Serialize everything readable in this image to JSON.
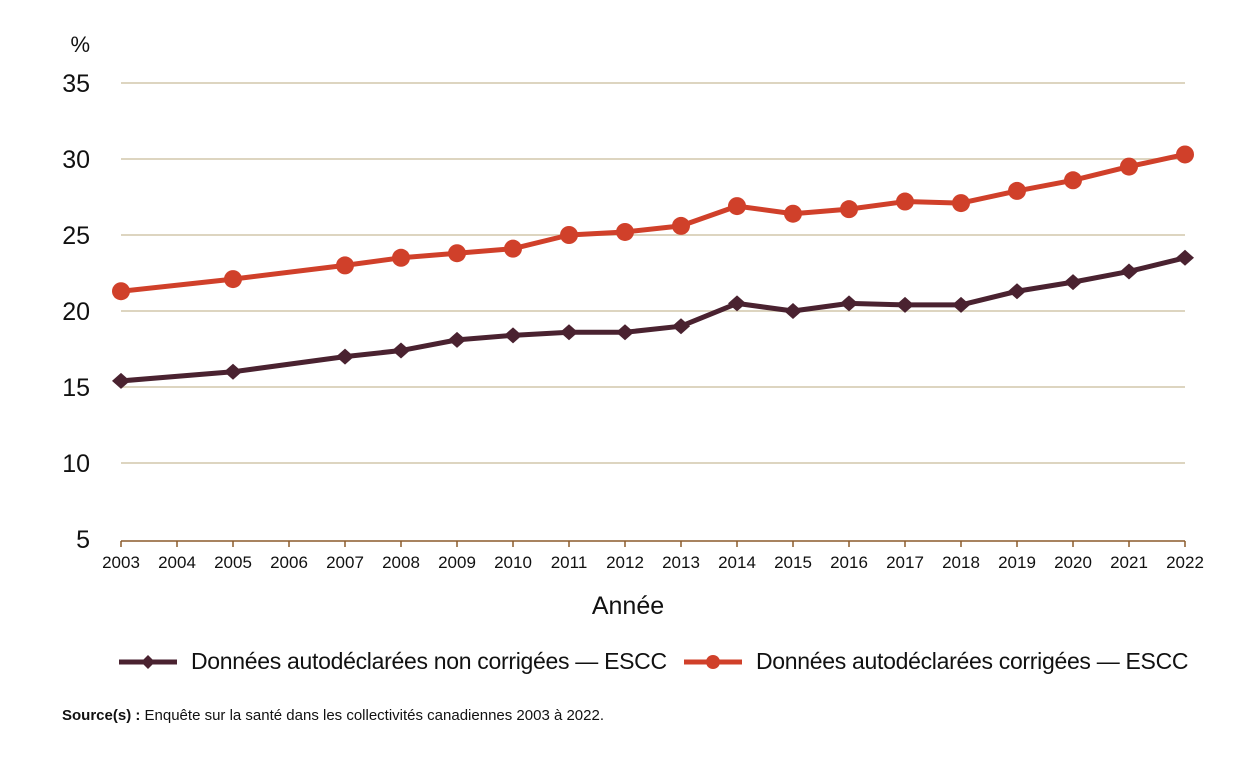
{
  "chart_data": {
    "type": "line",
    "title": "",
    "xlabel": "Année",
    "ylabel": "%",
    "ylim": [
      5,
      35
    ],
    "yticks": [
      5,
      10,
      15,
      20,
      25,
      30,
      35
    ],
    "x": [
      "2003",
      "2004",
      "2005",
      "2006",
      "2007",
      "2008",
      "2009",
      "2010",
      "2011",
      "2012",
      "2013",
      "2014",
      "2015",
      "2016",
      "2017",
      "2018",
      "2019",
      "2020",
      "2021",
      "2022"
    ],
    "grid": true,
    "legend_position": "bottom",
    "series": [
      {
        "name": "Données autodéclarées non corrigées — ESCC",
        "color": "#4A2230",
        "marker": "diamond",
        "points": [
          {
            "x": "2003",
            "y": 15.4
          },
          {
            "x": "2005",
            "y": 16.0
          },
          {
            "x": "2007",
            "y": 17.0
          },
          {
            "x": "2008",
            "y": 17.4
          },
          {
            "x": "2009",
            "y": 18.1
          },
          {
            "x": "2010",
            "y": 18.4
          },
          {
            "x": "2011",
            "y": 18.6
          },
          {
            "x": "2012",
            "y": 18.6
          },
          {
            "x": "2013",
            "y": 19.0
          },
          {
            "x": "2014",
            "y": 20.5
          },
          {
            "x": "2015",
            "y": 20.0
          },
          {
            "x": "2016",
            "y": 20.5
          },
          {
            "x": "2017",
            "y": 20.4
          },
          {
            "x": "2018",
            "y": 20.4
          },
          {
            "x": "2019",
            "y": 21.3
          },
          {
            "x": "2020",
            "y": 21.9
          },
          {
            "x": "2021",
            "y": 22.6
          },
          {
            "x": "2022",
            "y": 23.5
          }
        ]
      },
      {
        "name": "Données autodéclarées corrigées — ESCC",
        "color": "#D0402A",
        "marker": "circle",
        "points": [
          {
            "x": "2003",
            "y": 21.3
          },
          {
            "x": "2005",
            "y": 22.1
          },
          {
            "x": "2007",
            "y": 23.0
          },
          {
            "x": "2008",
            "y": 23.5
          },
          {
            "x": "2009",
            "y": 23.8
          },
          {
            "x": "2010",
            "y": 24.1
          },
          {
            "x": "2011",
            "y": 25.0
          },
          {
            "x": "2012",
            "y": 25.2
          },
          {
            "x": "2013",
            "y": 25.6
          },
          {
            "x": "2014",
            "y": 26.9
          },
          {
            "x": "2015",
            "y": 26.4
          },
          {
            "x": "2016",
            "y": 26.7
          },
          {
            "x": "2017",
            "y": 27.2
          },
          {
            "x": "2018",
            "y": 27.1
          },
          {
            "x": "2019",
            "y": 27.9
          },
          {
            "x": "2020",
            "y": 28.6
          },
          {
            "x": "2021",
            "y": 29.5
          },
          {
            "x": "2022",
            "y": 30.3
          }
        ]
      }
    ],
    "colors": {
      "grid": "#DDD5C0",
      "axis": "#8B5A2B"
    }
  },
  "legend": {
    "items": [
      {
        "label": "Données autodéclarées non corrigées — ESCC"
      },
      {
        "label": "Données autodéclarées corrigées — ESCC"
      }
    ]
  },
  "source": {
    "label": "Source(s) :",
    "text": " Enquête sur la santé dans les collectivités canadiennes 2003 à 2022."
  }
}
